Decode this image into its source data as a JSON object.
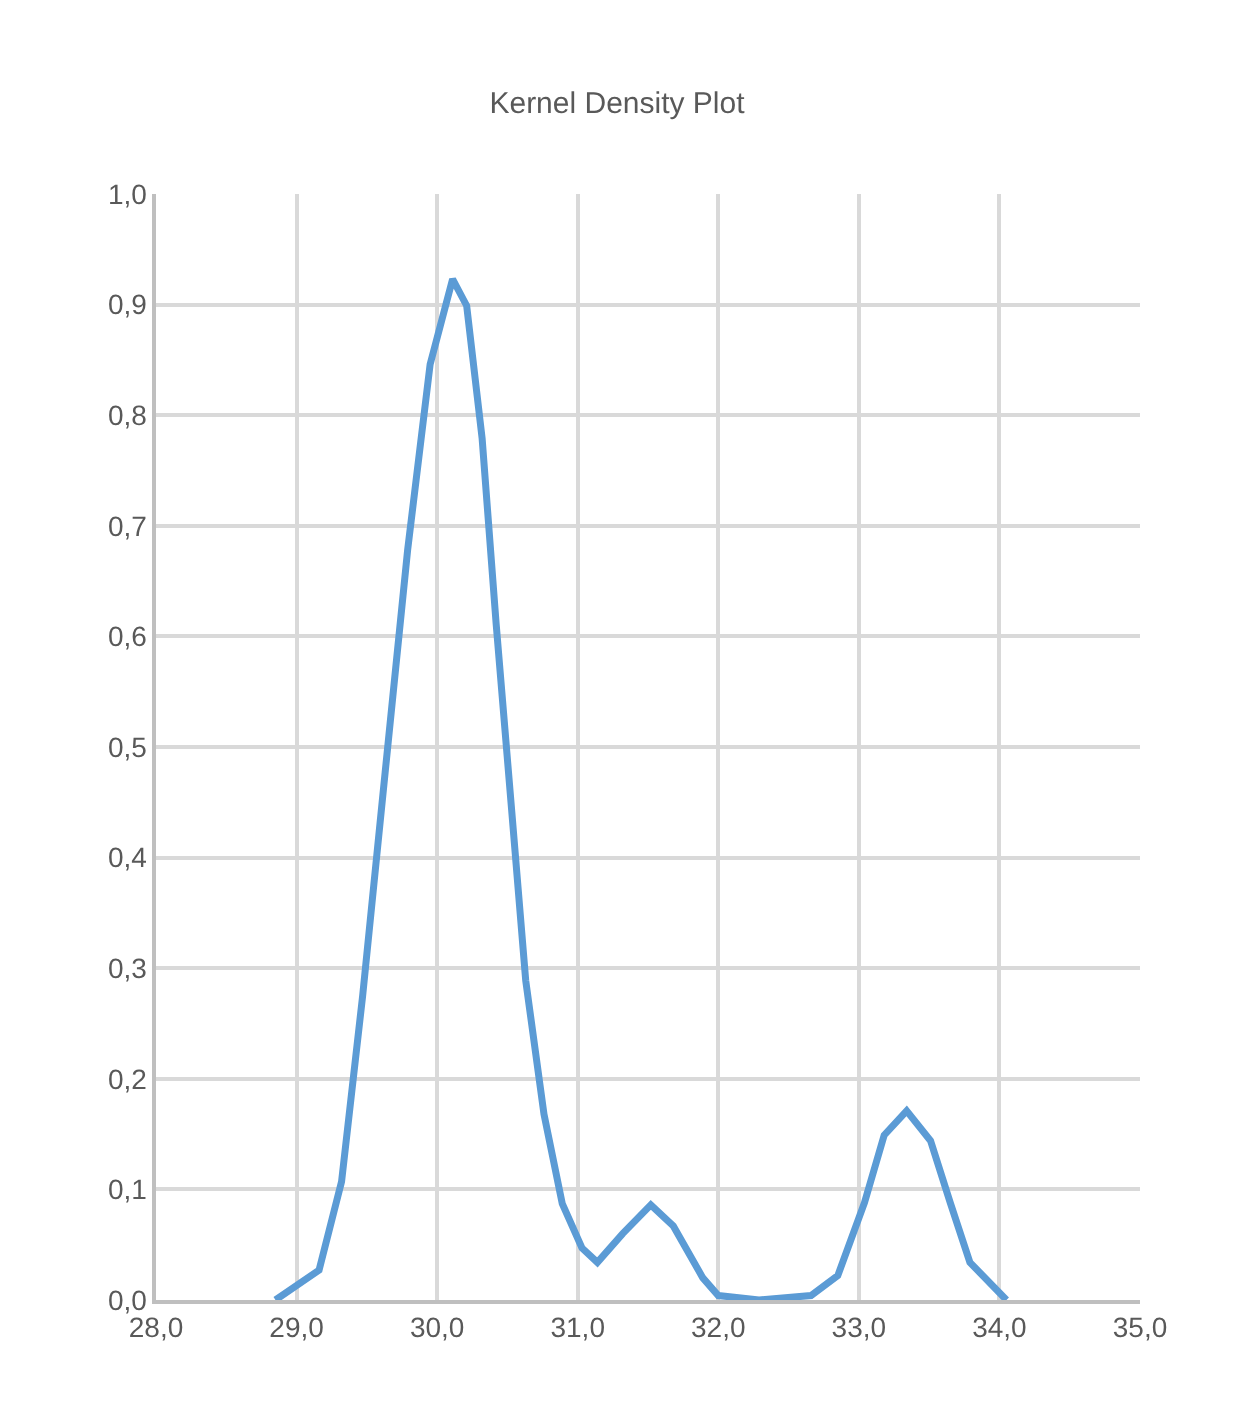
{
  "chart_data": {
    "type": "line",
    "title": "Kernel Density Plot",
    "x": [
      28.85,
      29.16,
      29.32,
      29.47,
      29.63,
      29.79,
      29.95,
      30.11,
      30.21,
      30.32,
      30.42,
      30.53,
      30.63,
      30.76,
      30.89,
      31.03,
      31.14,
      31.32,
      31.52,
      31.68,
      31.89,
      32.0,
      32.29,
      32.66,
      32.85,
      33.04,
      33.18,
      33.34,
      33.51,
      33.65,
      33.79,
      34.05
    ],
    "series": [
      {
        "color": "#5b9bd5",
        "values": [
          0.0,
          0.027,
          0.107,
          0.275,
          0.477,
          0.678,
          0.846,
          0.923,
          0.899,
          0.779,
          0.611,
          0.443,
          0.289,
          0.168,
          0.087,
          0.047,
          0.034,
          0.06,
          0.086,
          0.067,
          0.02,
          0.004,
          0.0,
          0.004,
          0.022,
          0.088,
          0.149,
          0.171,
          0.144,
          0.088,
          0.034,
          0.0
        ]
      }
    ],
    "xlim": [
      28,
      35
    ],
    "xticks": [
      {
        "value": 28,
        "label": "28,0"
      },
      {
        "value": 29,
        "label": "29,0"
      },
      {
        "value": 30,
        "label": "30,0"
      },
      {
        "value": 31,
        "label": "31,0"
      },
      {
        "value": 32,
        "label": "32,0"
      },
      {
        "value": 33,
        "label": "33,0"
      },
      {
        "value": 34,
        "label": "34,0"
      },
      {
        "value": 35,
        "label": "35,0"
      }
    ],
    "ylim": [
      0,
      1
    ],
    "yticks": [
      {
        "value": 0,
        "label": "0,0"
      },
      {
        "value": 0.1,
        "label": "0,1"
      },
      {
        "value": 0.2,
        "label": "0,2"
      },
      {
        "value": 0.3,
        "label": "0,3"
      },
      {
        "value": 0.4,
        "label": "0,4"
      },
      {
        "value": 0.5,
        "label": "0,5"
      },
      {
        "value": 0.6,
        "label": "0,6"
      },
      {
        "value": 0.7,
        "label": "0,7"
      },
      {
        "value": 0.8,
        "label": "0,8"
      },
      {
        "value": 0.9,
        "label": "0,9"
      },
      {
        "value": 1,
        "label": "1,0"
      }
    ],
    "grid": true,
    "legend": false,
    "marker": "none",
    "line_style": "solid"
  }
}
